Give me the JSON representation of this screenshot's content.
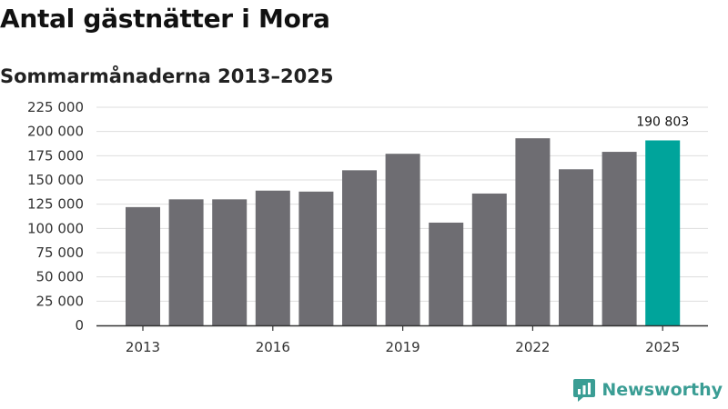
{
  "header": {
    "title": "Antal gästnätter i Mora",
    "subtitle": "Sommarmånaderna 2013–2025"
  },
  "brand": {
    "name": "Newsworthy",
    "icon": "newsworthy-logo-icon"
  },
  "colors": {
    "bar": "#6e6d72",
    "highlight": "#00a49b",
    "grid": "#dddddd",
    "axis": "#333333",
    "brand": "#3a9d94"
  },
  "chart_data": {
    "type": "bar",
    "title": "Antal gästnätter i Mora",
    "subtitle": "Sommarmånaderna 2013–2025",
    "xlabel": "",
    "ylabel": "",
    "categories": [
      "2013",
      "2014",
      "2015",
      "2016",
      "2017",
      "2018",
      "2019",
      "2020",
      "2021",
      "2022",
      "2023",
      "2024",
      "2025"
    ],
    "values": [
      122000,
      130000,
      130000,
      139000,
      138000,
      160000,
      177000,
      106000,
      136000,
      193000,
      161000,
      179000,
      190803
    ],
    "highlight_index": 12,
    "data_labels": [
      {
        "index": 12,
        "text": "190 803"
      }
    ],
    "x_tick_labels": [
      "2013",
      "2016",
      "2019",
      "2022",
      "2025"
    ],
    "y_tick_labels": [
      "0",
      "25 000",
      "50 000",
      "75 000",
      "100 000",
      "125 000",
      "150 000",
      "175 000",
      "200 000",
      "225 000"
    ],
    "ylim": [
      0,
      225000
    ],
    "grid": true,
    "legend": "none"
  }
}
